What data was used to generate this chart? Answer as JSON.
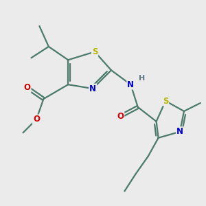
{
  "bg_color": "#ebebeb",
  "bond_color": "#4a7a6a",
  "atom_colors": {
    "S": "#b8b800",
    "N": "#0000cc",
    "O": "#cc0000",
    "H": "#607880",
    "C": "#4a7a6a"
  },
  "line_width": 1.6,
  "figsize": [
    3.0,
    3.0
  ],
  "dpi": 100
}
